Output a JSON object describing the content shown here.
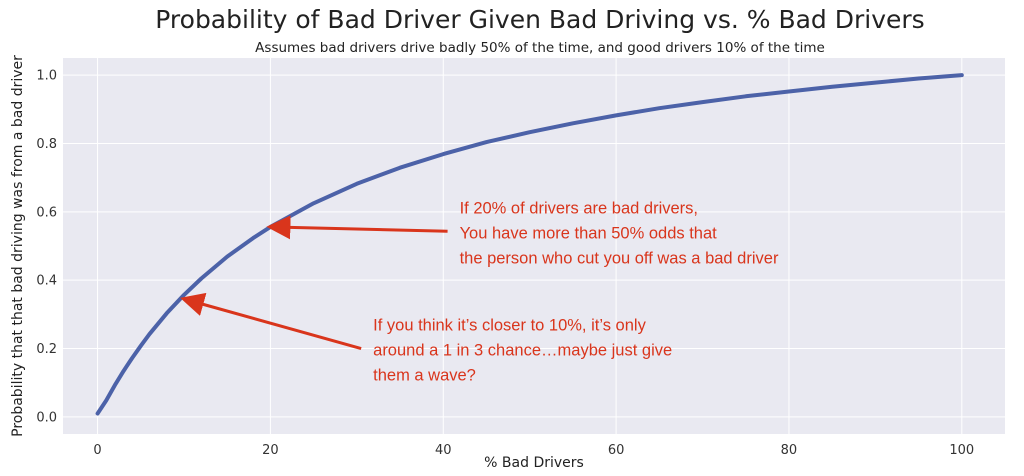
{
  "chart_data": {
    "type": "line",
    "title": "Probability of Bad Driver Given Bad Driving vs. % Bad Drivers",
    "subtitle": "Assumes bad drivers drive badly 50% of the time, and good drivers 10% of the time",
    "xlabel": "% Bad Drivers",
    "ylabel": "Probability that that bad driving was from a bad driver",
    "xlim": [
      -4,
      105
    ],
    "ylim": [
      -0.05,
      1.05
    ],
    "xticks": [
      "0",
      "20",
      "40",
      "60",
      "80",
      "100"
    ],
    "yticks": [
      "0.0",
      "0.2",
      "0.4",
      "0.6",
      "0.8",
      "1.0"
    ],
    "grid": true,
    "line_color": "#4c62a8",
    "background": "#e9e9f1",
    "annotation_color": "#d9351c",
    "series": [
      {
        "x": [
          0,
          1,
          2,
          3,
          4,
          5,
          6,
          8,
          10,
          12,
          15,
          18,
          20,
          25,
          30,
          35,
          40,
          45,
          50,
          55,
          60,
          65,
          70,
          75,
          80,
          85,
          90,
          95,
          100
        ],
        "y": [
          0.01,
          0.048,
          0.093,
          0.134,
          0.172,
          0.208,
          0.242,
          0.303,
          0.357,
          0.405,
          0.469,
          0.523,
          0.556,
          0.625,
          0.682,
          0.729,
          0.769,
          0.804,
          0.833,
          0.859,
          0.882,
          0.903,
          0.921,
          0.938,
          0.952,
          0.966,
          0.978,
          0.99,
          1.0
        ]
      }
    ],
    "annotations": [
      {
        "lines": [
          "If 20% of drivers are bad drivers,",
          "You have more than 50% odds that",
          "the person who cut you off was a bad driver"
        ],
        "arrow_to": [
          20,
          0.556
        ],
        "arrow_from": [
          40.5,
          0.543
        ]
      },
      {
        "lines": [
          "If you think it’s closer to 10%, it’s only",
          "around a 1 in 3 chance…maybe just give",
          "them a wave?"
        ],
        "arrow_to": [
          10,
          0.345
        ],
        "arrow_from": [
          30.5,
          0.2
        ]
      }
    ]
  }
}
